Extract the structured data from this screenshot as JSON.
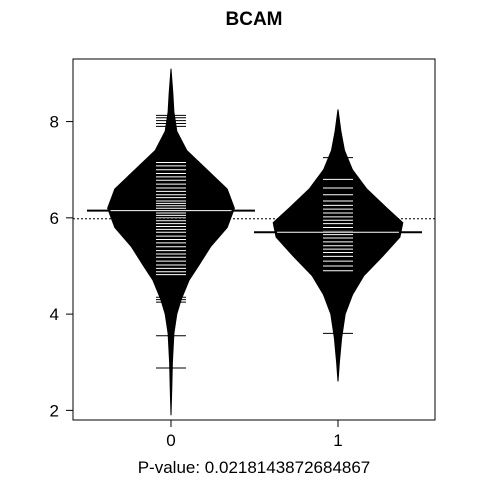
{
  "chart_data": {
    "type": "beanplot",
    "title": "BCAM",
    "xlabel": "P-value: 0.0218143872684867",
    "ylabel": "",
    "categories": [
      "0",
      "1"
    ],
    "ylim": [
      1.8,
      9.3
    ],
    "yticks": [
      2,
      4,
      6,
      8
    ],
    "overall_mean_line": 5.98,
    "grid": false,
    "legend": "none",
    "series": [
      {
        "category": "0",
        "min": 1.9,
        "max": 9.1,
        "mean": 6.15,
        "density": [
          [
            1.9,
            0.0
          ],
          [
            2.4,
            0.01
          ],
          [
            3.0,
            0.02
          ],
          [
            3.6,
            0.04
          ],
          [
            4.0,
            0.08
          ],
          [
            4.3,
            0.14
          ],
          [
            4.7,
            0.25
          ],
          [
            5.0,
            0.38
          ],
          [
            5.4,
            0.55
          ],
          [
            5.8,
            0.78
          ],
          [
            6.2,
            0.88
          ],
          [
            6.6,
            0.78
          ],
          [
            7.0,
            0.5
          ],
          [
            7.4,
            0.22
          ],
          [
            7.8,
            0.08
          ],
          [
            8.2,
            0.04
          ],
          [
            8.6,
            0.025
          ],
          [
            9.1,
            0.0
          ]
        ],
        "observations": [
          2.88,
          3.55,
          4.25,
          4.3,
          4.35,
          4.82,
          4.88,
          4.95,
          5.02,
          5.1,
          5.18,
          5.25,
          5.32,
          5.4,
          5.48,
          5.55,
          5.62,
          5.7,
          5.76,
          5.82,
          5.88,
          5.94,
          6.0,
          6.05,
          6.1,
          6.15,
          6.2,
          6.25,
          6.3,
          6.35,
          6.42,
          6.48,
          6.55,
          6.62,
          6.7,
          6.78,
          6.85,
          6.92,
          7.0,
          7.08,
          7.15,
          7.9,
          7.96,
          8.02,
          8.08,
          8.13
        ]
      },
      {
        "category": "1",
        "min": 2.6,
        "max": 8.25,
        "mean": 5.7,
        "density": [
          [
            2.6,
            0.0
          ],
          [
            3.0,
            0.02
          ],
          [
            3.5,
            0.05
          ],
          [
            4.0,
            0.1
          ],
          [
            4.4,
            0.2
          ],
          [
            4.8,
            0.36
          ],
          [
            5.2,
            0.62
          ],
          [
            5.6,
            0.86
          ],
          [
            5.9,
            0.9
          ],
          [
            6.2,
            0.68
          ],
          [
            6.6,
            0.4
          ],
          [
            7.0,
            0.2
          ],
          [
            7.4,
            0.09
          ],
          [
            7.8,
            0.04
          ],
          [
            8.25,
            0.0
          ]
        ],
        "observations": [
          3.6,
          4.4,
          4.9,
          5.0,
          5.1,
          5.2,
          5.28,
          5.35,
          5.42,
          5.5,
          5.58,
          5.65,
          5.72,
          5.8,
          5.88,
          5.95,
          6.02,
          6.1,
          6.18,
          6.26,
          6.35,
          6.48,
          6.62,
          6.8,
          7.0,
          7.25
        ]
      }
    ]
  }
}
